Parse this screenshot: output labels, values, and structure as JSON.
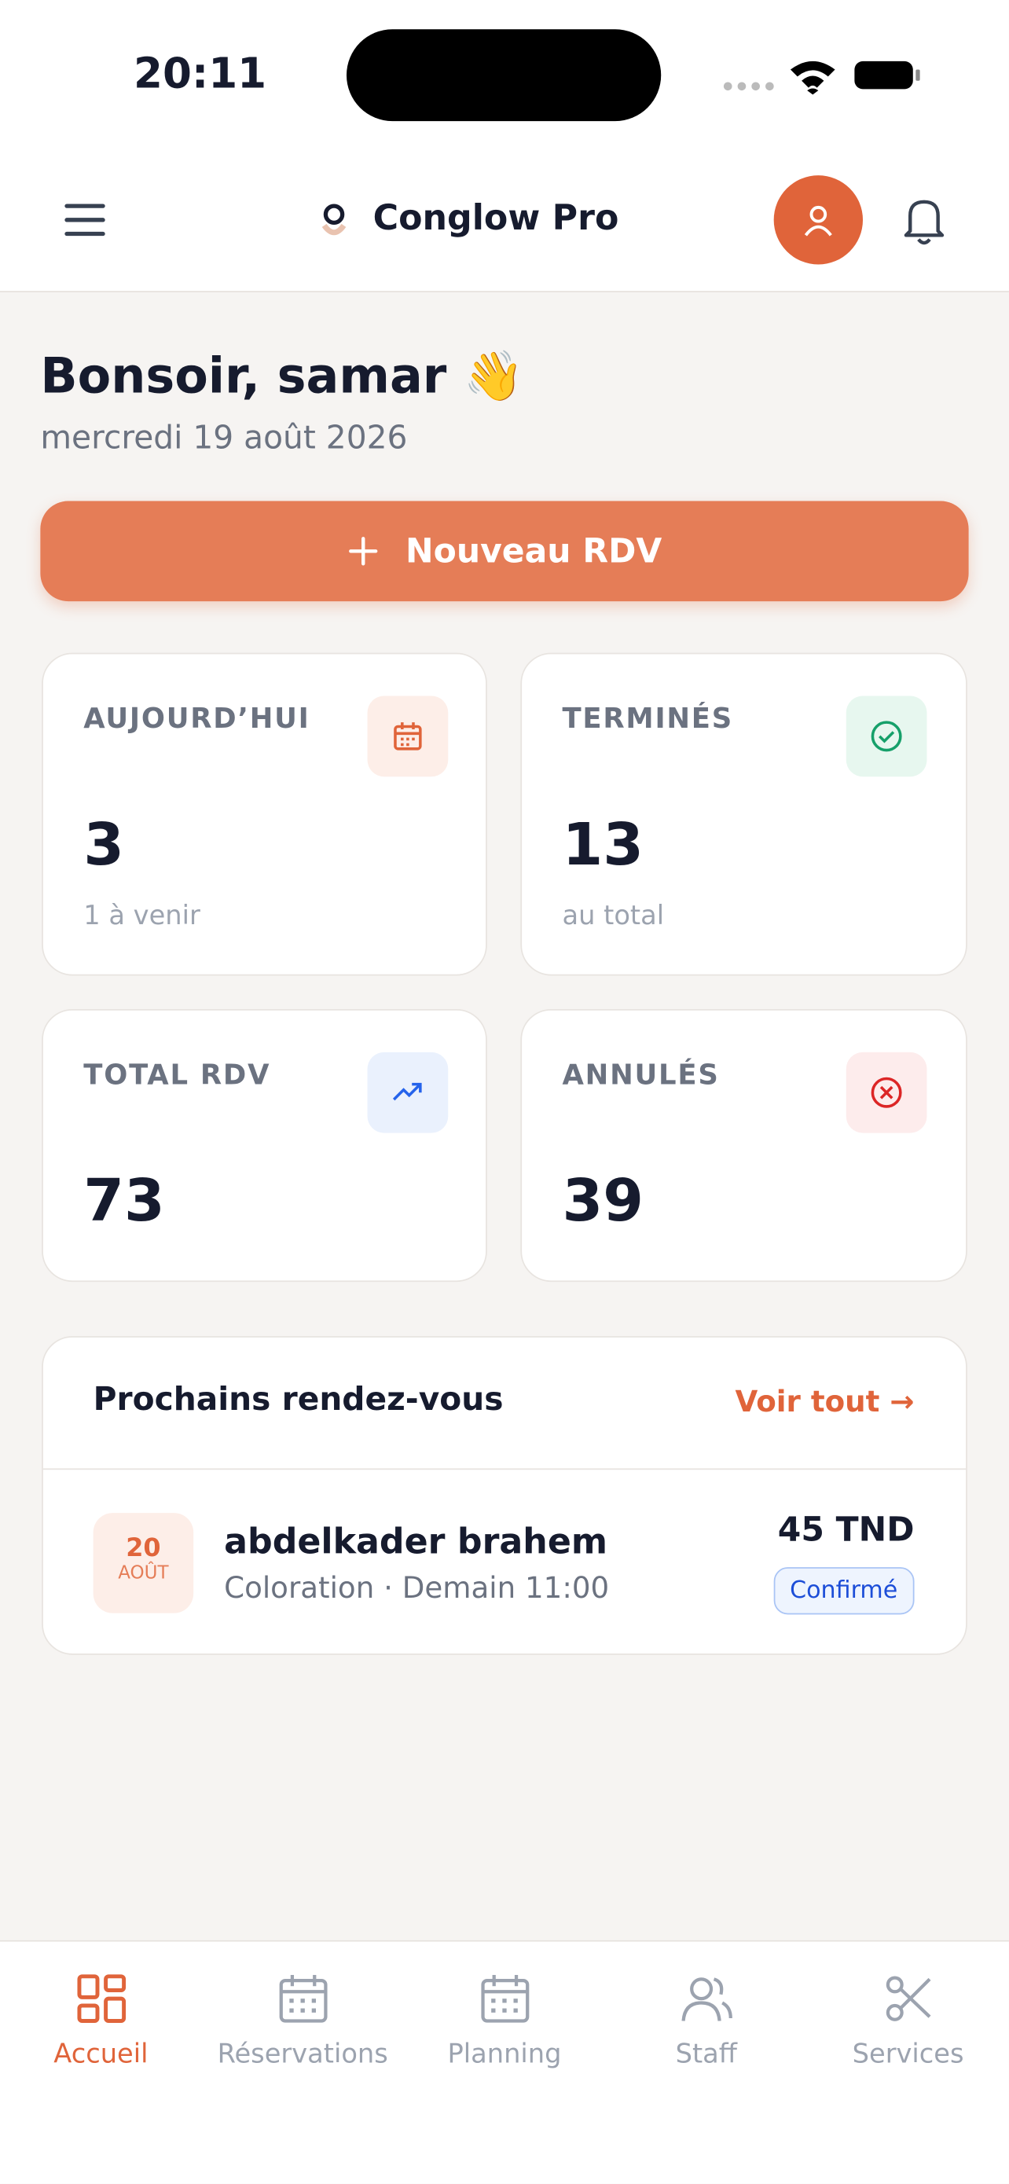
{
  "status_bar": {
    "time": "20:11"
  },
  "header": {
    "brand": "Conglow Pro"
  },
  "greeting": {
    "title": "Bonsoir, samar 👋",
    "date": "mercredi 19 août 2026"
  },
  "new_button": {
    "label": "Nouveau RDV"
  },
  "stats": [
    {
      "label": "AUJOURD’HUI",
      "value": 3,
      "sub": "1 à venir"
    },
    {
      "label": "TERMINÉS",
      "value": 13,
      "sub": "au total"
    },
    {
      "label": "TOTAL RDV",
      "value": 73
    },
    {
      "label": "ANNULÉS",
      "value": 39
    }
  ],
  "upcoming": {
    "title": "Prochains rendez-vous",
    "link": "Voir tout →",
    "items": [
      {
        "day": "20",
        "month": "AOÛT",
        "name": "abdelkader brahem",
        "detail": "Coloration · Demain 11:00",
        "price": "45 TND",
        "status": "Confirmé"
      }
    ]
  },
  "nav": [
    "Accueil",
    "Réservations",
    "Planning",
    "Staff",
    "Services"
  ]
}
